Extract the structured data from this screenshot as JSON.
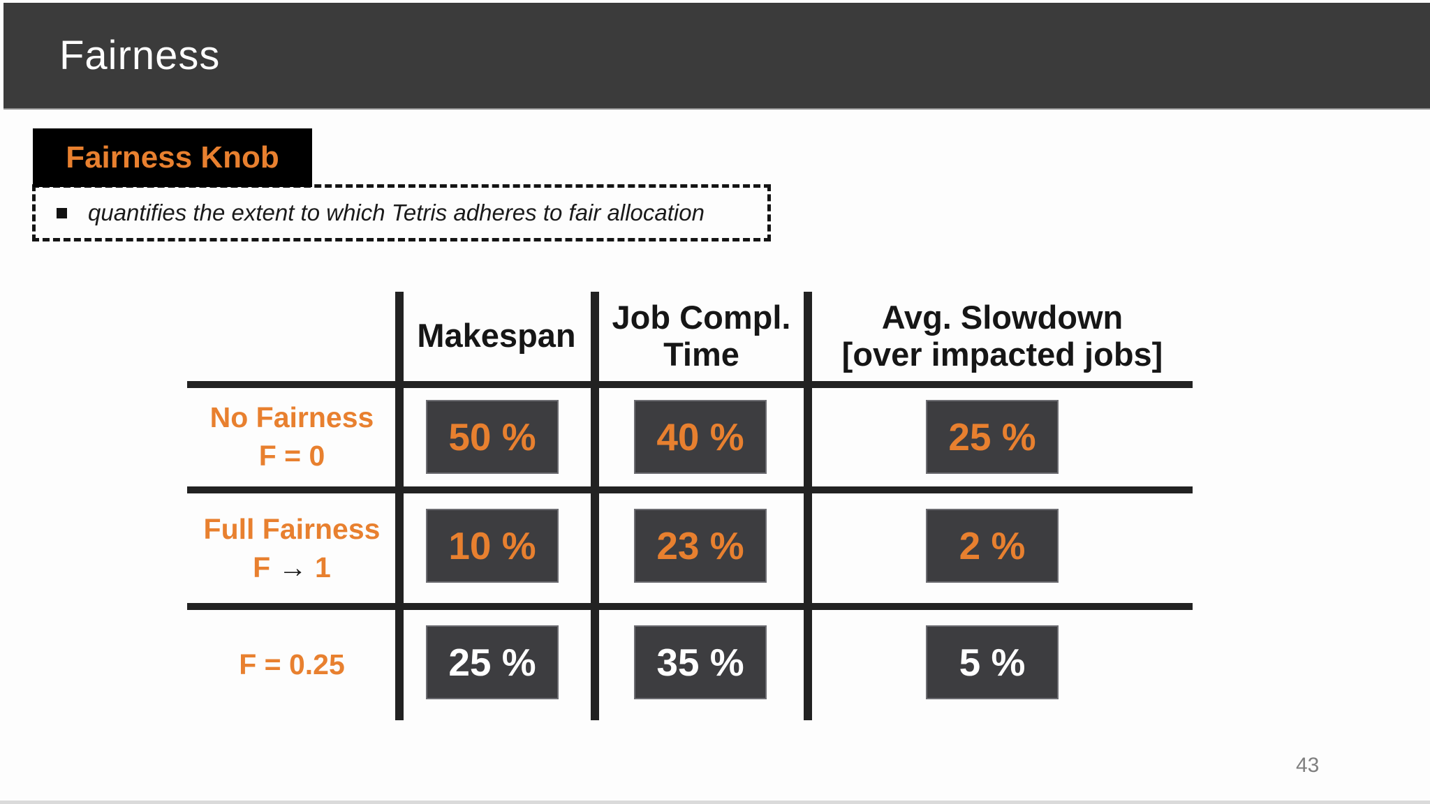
{
  "slide": {
    "title": "Fairness",
    "page_number": "43"
  },
  "callout": {
    "label": "Fairness Knob"
  },
  "bullet": {
    "text": "quantifies the extent to which Tetris adheres to fair allocation"
  },
  "table": {
    "header": {
      "col1_lines": [
        "Makespan"
      ],
      "col2_lines": [
        "Job Compl.",
        "Time"
      ],
      "col3_lines": [
        "Avg. Slowdown",
        "[over impacted jobs]"
      ]
    },
    "rows": [
      {
        "label_lines": [
          "No Fairness",
          "F = 0"
        ],
        "values": [
          "50 %",
          "40 %",
          "25 %"
        ],
        "value_style": "orange"
      },
      {
        "label_line1": "Full Fairness",
        "label_line2_parts": {
          "lhs": "F",
          "arrow": "→",
          "rhs": "1"
        },
        "values": [
          "10 %",
          "23 %",
          "2 %"
        ],
        "value_style": "orange"
      },
      {
        "label_lines": [
          "F = 0.25"
        ],
        "values": [
          "25 %",
          "35 %",
          "5 %"
        ],
        "value_style": "white"
      }
    ]
  },
  "colors": {
    "accent_orange": "#E8802F",
    "header_bg": "#3B3B3B",
    "callout_bg": "#000000",
    "box_bg": "#3D3D40",
    "table_line": "#222222",
    "bullet_text": "#1A1A1A",
    "value_white": "#FFFFFF",
    "page_number": "#7F7F7F",
    "slide_bg": "#FDFDFD"
  }
}
